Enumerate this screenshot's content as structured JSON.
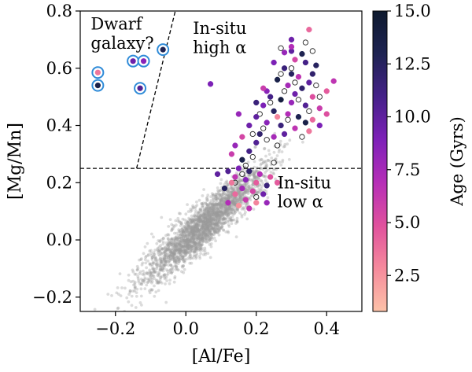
{
  "chart_data": {
    "type": "scatter",
    "xlabel": "[Al/Fe]",
    "ylabel": "[Mg/Mn]",
    "xlim": [
      -0.3,
      0.5
    ],
    "ylim": [
      -0.25,
      0.8
    ],
    "xticks": [
      -0.2,
      0.0,
      0.2,
      0.4
    ],
    "xtick_labels": [
      "−0.2",
      "0.0",
      "0.2",
      "0.4"
    ],
    "yticks": [
      -0.2,
      0.0,
      0.2,
      0.4,
      0.6,
      0.8
    ],
    "ytick_labels": [
      "−0.2",
      "0.0",
      "0.2",
      "0.4",
      "0.6",
      "0.8"
    ],
    "grid": false,
    "colorbar": {
      "label": "Age (Gyrs)",
      "range": [
        0.8,
        15.0
      ],
      "ticks": [
        2.5,
        5.0,
        7.5,
        10.0,
        12.5,
        15.0
      ],
      "tick_labels": [
        "2.5",
        "5.0",
        "7.5",
        "10.0",
        "12.5",
        "15.0"
      ],
      "colormap_stops": [
        "#fdc2a8",
        "#f58a9c",
        "#e0519d",
        "#b62eb7",
        "#7e21b8",
        "#452189",
        "#1e2352",
        "#0e1a2e"
      ]
    },
    "dividing_lines": [
      {
        "points": [
          [
            -0.3,
            0.25
          ],
          [
            0.5,
            0.25
          ]
        ],
        "style": "dashed"
      },
      {
        "points": [
          [
            -0.14,
            0.25
          ],
          [
            -0.03,
            0.8
          ]
        ],
        "style": "dashed"
      }
    ],
    "annotations": [
      {
        "lines": [
          "Dwarf",
          "galaxy?"
        ],
        "x": -0.27,
        "y": 0.735
      },
      {
        "lines": [
          "In-situ",
          "high α"
        ],
        "x": 0.02,
        "y": 0.72
      },
      {
        "lines": [
          "In-situ",
          "low α"
        ],
        "x": 0.26,
        "y": 0.18
      }
    ],
    "series": [
      {
        "name": "Dwarf galaxy candidates",
        "marker": "circle, ringed",
        "points": [
          {
            "x": -0.25,
            "y": 0.585,
            "age": 3.5
          },
          {
            "x": -0.25,
            "y": 0.54,
            "age": 13.5
          },
          {
            "x": -0.13,
            "y": 0.53,
            "age": 10.5
          },
          {
            "x": -0.15,
            "y": 0.625,
            "age": 9.5
          },
          {
            "x": -0.12,
            "y": 0.625,
            "age": 8.5
          },
          {
            "x": -0.065,
            "y": 0.665,
            "age": 13.0
          }
        ]
      },
      {
        "name": "In-situ high alpha",
        "marker": "circle",
        "points": [
          {
            "x": 0.25,
            "y": 0.62,
            "age": 9.0
          },
          {
            "x": 0.28,
            "y": 0.6,
            "age": 11.5
          },
          {
            "x": 0.3,
            "y": 0.58,
            "age": 12.5
          },
          {
            "x": 0.32,
            "y": 0.57,
            "age": 6.5
          },
          {
            "x": 0.35,
            "y": 0.55,
            "age": 10.0
          },
          {
            "x": 0.26,
            "y": 0.56,
            "age": 13.5
          },
          {
            "x": 0.29,
            "y": 0.54,
            "age": 7.5
          },
          {
            "x": 0.33,
            "y": 0.53,
            "age": 12.0
          },
          {
            "x": 0.31,
            "y": 0.51,
            "age": 9.5
          },
          {
            "x": 0.36,
            "y": 0.5,
            "age": 5.0
          },
          {
            "x": 0.24,
            "y": 0.5,
            "age": 11.0
          },
          {
            "x": 0.27,
            "y": 0.49,
            "age": 14.0
          },
          {
            "x": 0.3,
            "y": 0.48,
            "age": 8.0
          },
          {
            "x": 0.34,
            "y": 0.47,
            "age": 10.5
          },
          {
            "x": 0.38,
            "y": 0.46,
            "age": 6.0
          },
          {
            "x": 0.22,
            "y": 0.47,
            "age": 9.0
          },
          {
            "x": 0.25,
            "y": 0.45,
            "age": 12.5
          },
          {
            "x": 0.29,
            "y": 0.44,
            "age": 7.0
          },
          {
            "x": 0.32,
            "y": 0.43,
            "age": 13.0
          },
          {
            "x": 0.36,
            "y": 0.42,
            "age": 4.0
          },
          {
            "x": 0.2,
            "y": 0.43,
            "age": 10.0
          },
          {
            "x": 0.23,
            "y": 0.41,
            "age": 8.5
          },
          {
            "x": 0.27,
            "y": 0.4,
            "age": 11.5
          },
          {
            "x": 0.31,
            "y": 0.39,
            "age": 6.5
          },
          {
            "x": 0.35,
            "y": 0.38,
            "age": 3.5
          },
          {
            "x": 0.18,
            "y": 0.4,
            "age": 9.5
          },
          {
            "x": 0.21,
            "y": 0.37,
            "age": 12.0
          },
          {
            "x": 0.25,
            "y": 0.36,
            "age": 7.5
          },
          {
            "x": 0.16,
            "y": 0.36,
            "age": 5.5
          },
          {
            "x": 0.2,
            "y": 0.34,
            "age": 10.5
          },
          {
            "x": 0.14,
            "y": 0.33,
            "age": 8.0
          },
          {
            "x": 0.18,
            "y": 0.31,
            "age": 11.0
          },
          {
            "x": 0.13,
            "y": 0.3,
            "age": 6.0
          },
          {
            "x": 0.16,
            "y": 0.28,
            "age": 13.5
          },
          {
            "x": 0.4,
            "y": 0.52,
            "age": 4.5
          },
          {
            "x": 0.42,
            "y": 0.555,
            "age": 6.5
          },
          {
            "x": 0.3,
            "y": 0.66,
            "age": 10.0
          },
          {
            "x": 0.33,
            "y": 0.65,
            "age": 13.0
          },
          {
            "x": 0.28,
            "y": 0.655,
            "age": 8.0
          },
          {
            "x": 0.34,
            "y": 0.62,
            "age": 11.0
          },
          {
            "x": 0.31,
            "y": 0.63,
            "age": 5.5
          },
          {
            "x": 0.35,
            "y": 0.735,
            "age": 4.0
          },
          {
            "x": 0.3,
            "y": 0.7,
            "age": 9.5
          },
          {
            "x": 0.3,
            "y": 0.675,
            "age": 7.0
          },
          {
            "x": 0.37,
            "y": 0.61,
            "age": 12.5
          },
          {
            "x": 0.23,
            "y": 0.52,
            "age": 8.5
          },
          {
            "x": 0.2,
            "y": 0.48,
            "age": 11.5
          },
          {
            "x": 0.38,
            "y": 0.4,
            "age": 9.0
          },
          {
            "x": 0.4,
            "y": 0.44,
            "age": 5.0
          },
          {
            "x": 0.07,
            "y": 0.545,
            "age": 9.0
          },
          {
            "x": 0.22,
            "y": 0.53,
            "age": 6.0
          },
          {
            "x": 0.15,
            "y": 0.44,
            "age": 8.0
          },
          {
            "x": 0.36,
            "y": 0.58,
            "age": 12.0
          },
          {
            "x": 0.26,
            "y": 0.43,
            "age": 3.0
          },
          {
            "x": 0.34,
            "y": 0.41,
            "age": 13.5
          },
          {
            "x": 0.28,
            "y": 0.37,
            "age": 10.0
          }
        ]
      },
      {
        "name": "In-situ low alpha",
        "marker": "circle",
        "points": [
          {
            "x": 0.15,
            "y": 0.25,
            "age": 9.0
          },
          {
            "x": 0.18,
            "y": 0.24,
            "age": 12.0
          },
          {
            "x": 0.21,
            "y": 0.23,
            "age": 7.0
          },
          {
            "x": 0.24,
            "y": 0.22,
            "age": 5.0
          },
          {
            "x": 0.12,
            "y": 0.24,
            "age": 10.5
          },
          {
            "x": 0.14,
            "y": 0.22,
            "age": 6.5
          },
          {
            "x": 0.17,
            "y": 0.21,
            "age": 8.5
          },
          {
            "x": 0.2,
            "y": 0.2,
            "age": 4.5
          },
          {
            "x": 0.23,
            "y": 0.19,
            "age": 11.5
          },
          {
            "x": 0.13,
            "y": 0.2,
            "age": 3.5
          },
          {
            "x": 0.16,
            "y": 0.18,
            "age": 7.5
          },
          {
            "x": 0.19,
            "y": 0.17,
            "age": 5.5
          },
          {
            "x": 0.22,
            "y": 0.16,
            "age": 9.5
          },
          {
            "x": 0.14,
            "y": 0.16,
            "age": 4.0
          },
          {
            "x": 0.17,
            "y": 0.14,
            "age": 6.0
          },
          {
            "x": 0.2,
            "y": 0.13,
            "age": 3.0
          },
          {
            "x": 0.23,
            "y": 0.13,
            "age": 8.0
          },
          {
            "x": 0.11,
            "y": 0.18,
            "age": 12.5
          },
          {
            "x": 0.15,
            "y": 0.12,
            "age": 2.5
          },
          {
            "x": 0.18,
            "y": 0.11,
            "age": 6.5
          },
          {
            "x": 0.09,
            "y": 0.23,
            "age": 10.0
          },
          {
            "x": 0.26,
            "y": 0.2,
            "age": 4.5
          },
          {
            "x": 0.12,
            "y": 0.13,
            "age": 7.0
          }
        ]
      },
      {
        "name": "Open circles",
        "marker": "hollow circle",
        "points": [
          {
            "x": 0.27,
            "y": 0.58
          },
          {
            "x": 0.31,
            "y": 0.55
          },
          {
            "x": 0.24,
            "y": 0.48
          },
          {
            "x": 0.35,
            "y": 0.45
          },
          {
            "x": 0.29,
            "y": 0.42
          },
          {
            "x": 0.22,
            "y": 0.39
          },
          {
            "x": 0.33,
            "y": 0.36
          },
          {
            "x": 0.26,
            "y": 0.33
          },
          {
            "x": 0.19,
            "y": 0.29
          },
          {
            "x": 0.3,
            "y": 0.6
          },
          {
            "x": 0.37,
            "y": 0.54
          },
          {
            "x": 0.21,
            "y": 0.44
          },
          {
            "x": 0.17,
            "y": 0.26
          },
          {
            "x": 0.25,
            "y": 0.27
          },
          {
            "x": 0.14,
            "y": 0.2
          },
          {
            "x": 0.2,
            "y": 0.15
          },
          {
            "x": 0.32,
            "y": 0.49
          },
          {
            "x": 0.28,
            "y": 0.52
          },
          {
            "x": 0.38,
            "y": 0.5
          },
          {
            "x": 0.23,
            "y": 0.35
          },
          {
            "x": 0.27,
            "y": 0.67
          },
          {
            "x": 0.34,
            "y": 0.69
          },
          {
            "x": 0.36,
            "y": 0.66
          },
          {
            "x": 0.19,
            "y": 0.37
          },
          {
            "x": 0.16,
            "y": 0.23
          }
        ]
      }
    ],
    "background_cloud": {
      "description": "dense grey point cloud",
      "color": "#9a9a9a",
      "center": [
        0.05,
        0.05
      ],
      "slope": 1.15,
      "count": 2600
    }
  }
}
